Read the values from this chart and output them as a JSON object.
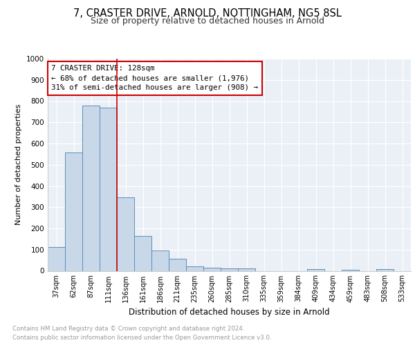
{
  "title_line1": "7, CRASTER DRIVE, ARNOLD, NOTTINGHAM, NG5 8SL",
  "title_line2": "Size of property relative to detached houses in Arnold",
  "xlabel": "Distribution of detached houses by size in Arnold",
  "ylabel": "Number of detached properties",
  "bar_labels": [
    "37sqm",
    "62sqm",
    "87sqm",
    "111sqm",
    "136sqm",
    "161sqm",
    "186sqm",
    "211sqm",
    "235sqm",
    "260sqm",
    "285sqm",
    "310sqm",
    "335sqm",
    "359sqm",
    "384sqm",
    "409sqm",
    "434sqm",
    "459sqm",
    "483sqm",
    "508sqm",
    "533sqm"
  ],
  "bar_values": [
    113,
    557,
    778,
    770,
    345,
    163,
    97,
    57,
    22,
    14,
    13,
    11,
    0,
    0,
    0,
    8,
    0,
    5,
    0,
    8,
    0
  ],
  "bar_color": "#c8d8e8",
  "bar_edge_color": "#5b8db8",
  "annotation_line1": "7 CRASTER DRIVE: 128sqm",
  "annotation_line2": "← 68% of detached houses are smaller (1,976)",
  "annotation_line3": "31% of semi-detached houses are larger (908) →",
  "vline_index": 4,
  "vline_color": "#cc0000",
  "ylim": [
    0,
    1000
  ],
  "yticks": [
    0,
    100,
    200,
    300,
    400,
    500,
    600,
    700,
    800,
    900,
    1000
  ],
  "footer_line1": "Contains HM Land Registry data © Crown copyright and database right 2024.",
  "footer_line2": "Contains public sector information licensed under the Open Government Licence v3.0.",
  "plot_bg_color": "#eaf0f6"
}
